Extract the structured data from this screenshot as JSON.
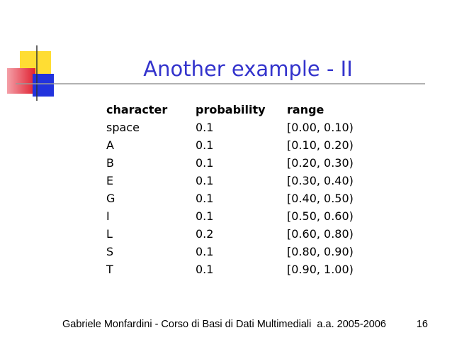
{
  "header": {
    "title": "Another example - II"
  },
  "table": {
    "columns": [
      "character",
      "probability",
      "range"
    ],
    "rows": [
      [
        "space",
        "0.1",
        "[0.00, 0.10)"
      ],
      [
        "A",
        "0.1",
        "[0.10, 0.20)"
      ],
      [
        "B",
        "0.1",
        "[0.20, 0.30)"
      ],
      [
        "E",
        "0.1",
        "[0.30, 0.40)"
      ],
      [
        "G",
        "0.1",
        "[0.40, 0.50)"
      ],
      [
        "I",
        "0.1",
        "[0.50, 0.60)"
      ],
      [
        "L",
        "0.2",
        "[0.60, 0.80)"
      ],
      [
        "S",
        "0.1",
        "[0.80, 0.90)"
      ],
      [
        "T",
        "0.1",
        "[0.90, 1.00)"
      ]
    ]
  },
  "footer": {
    "text": "Gabriele Monfardini - Corso di Basi di Dati Multimediali  a.a. 2005-2006",
    "page": "16"
  }
}
